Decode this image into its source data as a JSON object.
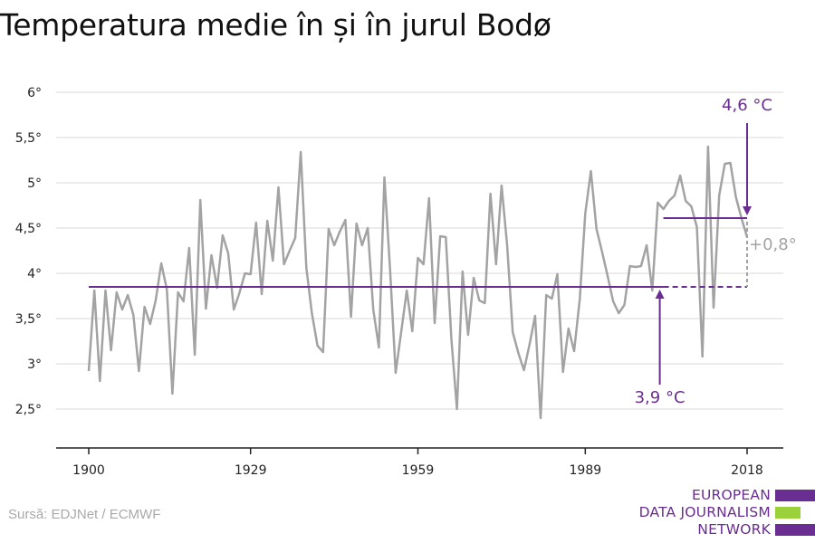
{
  "title": "Temperatura medie în și în jurul Bodø",
  "source": "Sursă: EDJNet / ECMWF",
  "logo": {
    "lines": [
      "EUROPEAN",
      "DATA JOURNALISM",
      "NETWORK"
    ],
    "bar_colors": [
      "#6a2d91",
      "#9bd13b",
      "#6a2d91"
    ]
  },
  "colors": {
    "series": "#a3a3a3",
    "accent": "#6a2d91",
    "grid": "#d9d9d9",
    "axis": "#222222"
  },
  "chart_data": {
    "type": "line",
    "title": "Temperatura medie în și în jurul Bodø",
    "xlim": [
      1900,
      2018
    ],
    "ylim": [
      2.5,
      6
    ],
    "yticks": [
      {
        "v": 2.5,
        "label": "2,5°"
      },
      {
        "v": 3,
        "label": "3°"
      },
      {
        "v": 3.5,
        "label": "3,5°"
      },
      {
        "v": 4,
        "label": "4°"
      },
      {
        "v": 4.5,
        "label": "4,5°"
      },
      {
        "v": 5,
        "label": "5°"
      },
      {
        "v": 5.5,
        "label": "5,5°"
      },
      {
        "v": 6,
        "label": "6°"
      }
    ],
    "xticks": [
      {
        "v": 1900,
        "label": "1900"
      },
      {
        "v": 1929,
        "label": "1929"
      },
      {
        "v": 1959,
        "label": "1959"
      },
      {
        "v": 1989,
        "label": "1989"
      },
      {
        "v": 2018,
        "label": "2018"
      }
    ],
    "grid": true,
    "series": [
      {
        "x": [
          1900,
          1901,
          1902,
          1903,
          1904,
          1905,
          1906,
          1907,
          1908,
          1909,
          1910,
          1911,
          1912,
          1913,
          1914,
          1915,
          1916,
          1917,
          1918,
          1919,
          1920,
          1921,
          1922,
          1923,
          1924,
          1925,
          1926,
          1927,
          1928,
          1929,
          1930,
          1931,
          1932,
          1933,
          1934,
          1935,
          1936,
          1937,
          1938,
          1939,
          1940,
          1941,
          1942,
          1943,
          1944,
          1945,
          1946,
          1947,
          1948,
          1949,
          1950,
          1951,
          1952,
          1953,
          1954,
          1955,
          1956,
          1957,
          1958,
          1959,
          1960,
          1961,
          1962,
          1963,
          1964,
          1965,
          1966,
          1967,
          1968,
          1969,
          1970,
          1971,
          1972,
          1973,
          1974,
          1975,
          1976,
          1977,
          1978,
          1979,
          1980,
          1981,
          1982,
          1983,
          1984,
          1985,
          1986,
          1987,
          1988,
          1989,
          1990,
          1991,
          1992,
          1993,
          1994,
          1995,
          1996,
          1997,
          1998,
          1999,
          2000,
          2001,
          2002,
          2003,
          2004,
          2005,
          2006,
          2007,
          2008,
          2009,
          2010,
          2011,
          2012,
          2013,
          2014,
          2015,
          2016,
          2017,
          2018
        ],
        "values": [
          2.92,
          3.81,
          2.81,
          3.81,
          3.15,
          3.79,
          3.6,
          3.76,
          3.54,
          2.92,
          3.63,
          3.44,
          3.7,
          4.11,
          3.82,
          2.67,
          3.79,
          3.69,
          4.28,
          3.1,
          4.81,
          3.61,
          4.2,
          3.84,
          4.42,
          4.22,
          3.6,
          3.78,
          4.0,
          3.99,
          4.56,
          3.77,
          4.58,
          4.14,
          4.95,
          4.1,
          4.25,
          4.39,
          5.34,
          4.06,
          3.56,
          3.2,
          3.13,
          4.49,
          4.31,
          4.46,
          4.59,
          3.52,
          4.55,
          4.31,
          4.5,
          3.6,
          3.18,
          5.06,
          4.05,
          2.9,
          3.35,
          3.81,
          3.36,
          4.17,
          4.1,
          4.83,
          3.45,
          4.41,
          4.4,
          3.27,
          2.5,
          4.02,
          3.32,
          3.95,
          3.7,
          3.67,
          4.88,
          4.1,
          4.97,
          4.3,
          3.35,
          3.12,
          2.93,
          3.21,
          3.53,
          2.4,
          3.76,
          3.72,
          3.99,
          2.91,
          3.39,
          3.14,
          3.71,
          4.66,
          5.13,
          4.49,
          4.24,
          3.97,
          3.69,
          3.56,
          3.65,
          4.08,
          4.07,
          4.08,
          4.31,
          3.81,
          4.78,
          4.71,
          4.8,
          4.86,
          5.08,
          4.8,
          4.74,
          4.51,
          3.08,
          5.4,
          3.62,
          4.86,
          5.21,
          5.22,
          4.84,
          4.61,
          4.4
        ]
      }
    ],
    "reference_lines": [
      {
        "label": "3,9 °C",
        "value": 3.85,
        "from": 1900,
        "to": 2003,
        "dashed_to": 2018
      },
      {
        "label": "4,6 °C",
        "value": 4.61,
        "from": 2003,
        "to": 2018
      }
    ],
    "difference_label": "+0,8°"
  }
}
